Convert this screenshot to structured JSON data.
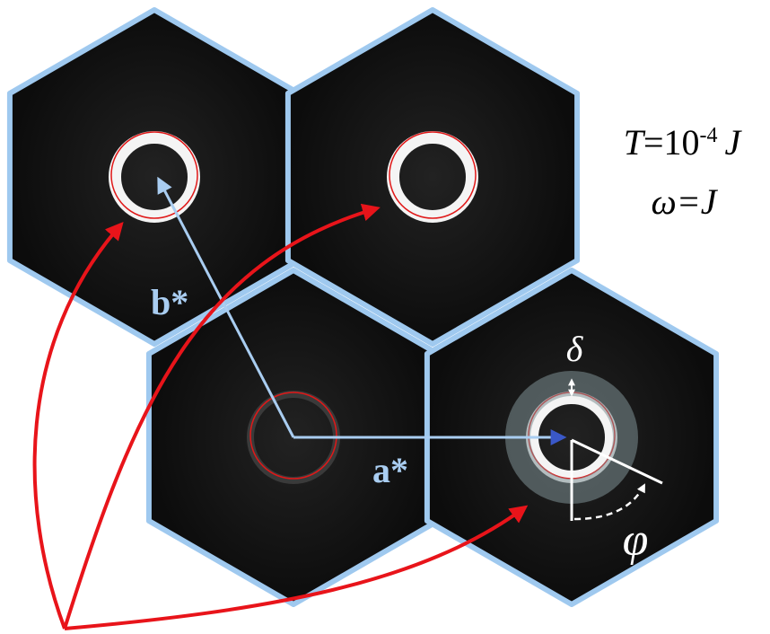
{
  "annotation": {
    "temperature": {
      "symbol": "T",
      "equals": "=10",
      "exponent": "-4",
      "unit": "J"
    },
    "frequency": "ω=J"
  },
  "vectors": {
    "b": "b*",
    "a": "a*"
  },
  "ring": {
    "width_symbol": "δ",
    "angle_symbol": "φ"
  }
}
